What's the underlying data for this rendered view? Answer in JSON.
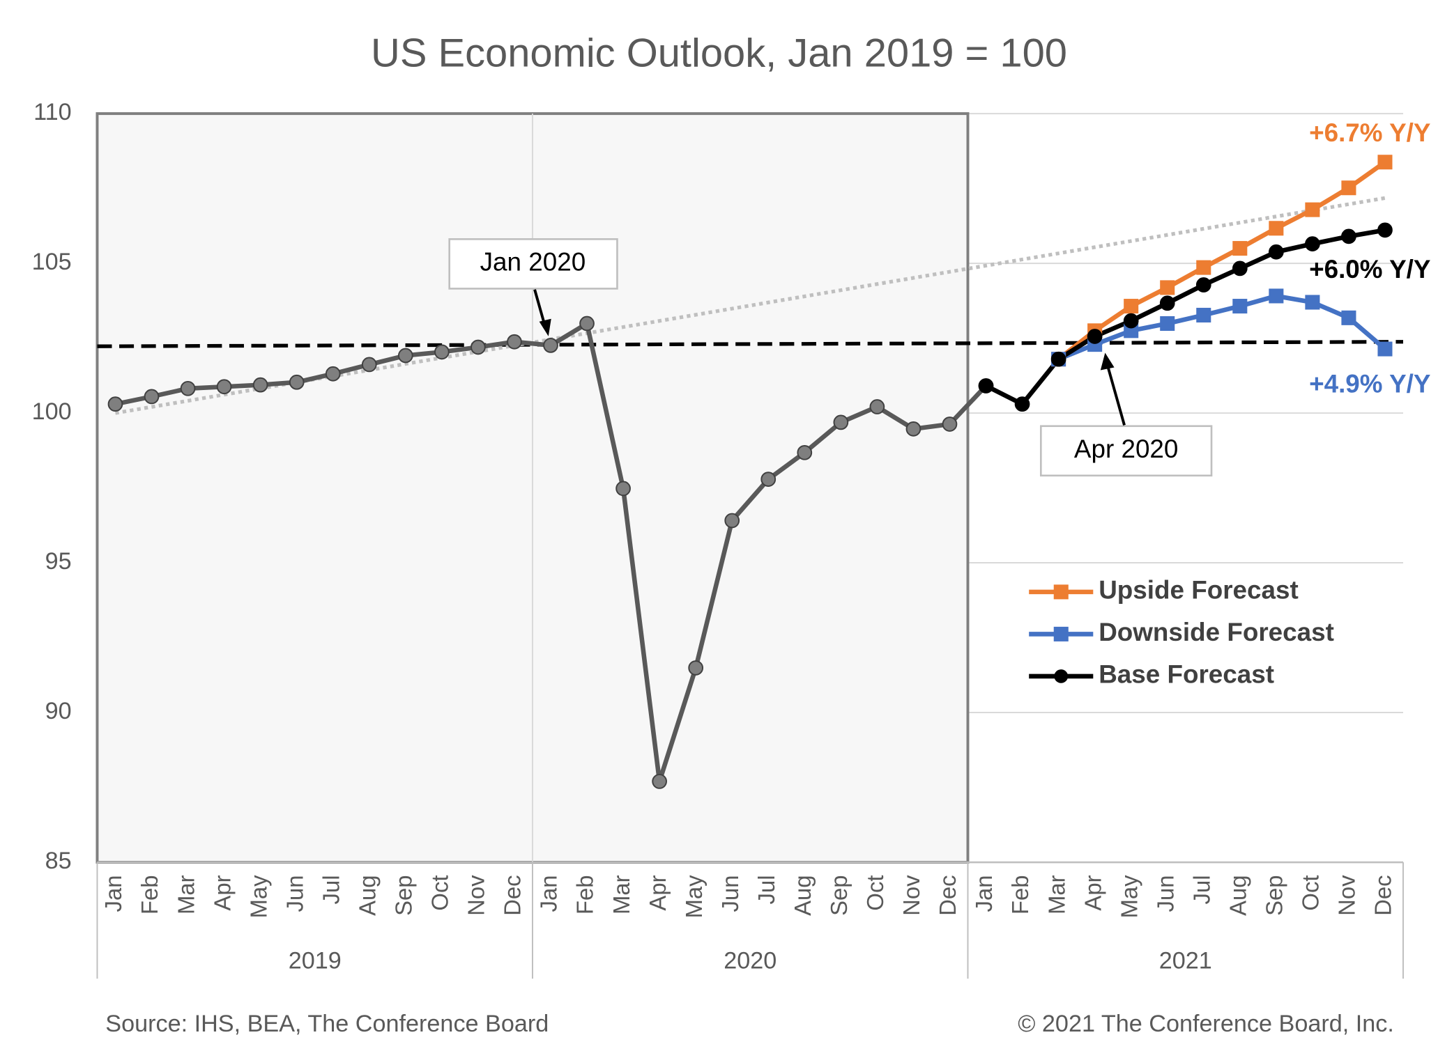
{
  "chart_data": {
    "type": "line",
    "title": "US Economic Outlook, Jan 2019 = 100",
    "categories": [
      "Jan",
      "Feb",
      "Mar",
      "Apr",
      "May",
      "Jun",
      "Jul",
      "Aug",
      "Sep",
      "Oct",
      "Nov",
      "Dec",
      "Jan",
      "Feb",
      "Mar",
      "Apr",
      "May",
      "Jun",
      "Jul",
      "Aug",
      "Sep",
      "Oct",
      "Nov",
      "Dec",
      "Jan",
      "Feb",
      "Mar",
      "Apr",
      "May",
      "Jun",
      "Jul",
      "Aug",
      "Sep",
      "Oct",
      "Nov",
      "Dec"
    ],
    "groups": [
      {
        "name": "2019",
        "count": 12
      },
      {
        "name": "2020",
        "count": 12
      },
      {
        "name": "2021",
        "count": 12
      }
    ],
    "series": [
      {
        "color": "#595959",
        "marker": "circle",
        "values": [
          100.3,
          100.55,
          100.82,
          100.88,
          100.94,
          101.03,
          101.31,
          101.62,
          101.92,
          102.04,
          102.2,
          102.38,
          102.26,
          102.99,
          97.48,
          87.7,
          91.49,
          96.41,
          97.79,
          98.68,
          99.69,
          100.21,
          99.47,
          99.63,
          100.91,
          null,
          null,
          null,
          null,
          null,
          null,
          null,
          null,
          null,
          null,
          null
        ]
      },
      {
        "name": "Upside Forecast",
        "color": "#ed7d31",
        "marker": "square",
        "values": [
          null,
          null,
          null,
          null,
          null,
          null,
          null,
          null,
          null,
          null,
          null,
          null,
          null,
          null,
          null,
          null,
          null,
          null,
          null,
          null,
          null,
          null,
          null,
          null,
          null,
          null,
          101.8,
          102.75,
          103.57,
          104.19,
          104.86,
          105.5,
          106.17,
          106.79,
          107.52,
          108.38
        ]
      },
      {
        "name": "Downside Forecast",
        "color": "#4472c4",
        "marker": "square",
        "values": [
          null,
          null,
          null,
          null,
          null,
          null,
          null,
          null,
          null,
          null,
          null,
          null,
          null,
          null,
          null,
          null,
          null,
          null,
          null,
          null,
          null,
          null,
          null,
          null,
          null,
          null,
          101.8,
          102.29,
          102.75,
          102.99,
          103.27,
          103.57,
          103.91,
          103.7,
          103.18,
          102.14
        ]
      },
      {
        "name": "Base Forecast",
        "color": "#000000",
        "marker": "circle",
        "values": [
          null,
          null,
          null,
          null,
          null,
          null,
          null,
          null,
          null,
          null,
          null,
          null,
          null,
          null,
          null,
          null,
          null,
          null,
          null,
          null,
          null,
          null,
          null,
          null,
          100.91,
          100.3,
          101.8,
          102.56,
          103.08,
          103.67,
          104.28,
          104.83,
          105.38,
          105.65,
          105.9,
          106.11
        ]
      }
    ],
    "reference_lines": [
      {
        "style": "dashed",
        "color": "#000000",
        "values": [
          102.23,
          102.38
        ]
      },
      {
        "style": "dotted",
        "color": "#bfbfbf",
        "values": [
          100,
          107.18
        ]
      }
    ],
    "ylim": [
      85,
      110
    ],
    "yticks": [
      85,
      90,
      95,
      100,
      105,
      110
    ],
    "grid": true,
    "annotations": [
      {
        "text": "Jan 2020"
      },
      {
        "text": "Apr 2020"
      },
      {
        "text": "+6.7% Y/Y",
        "color": "#ed7d31"
      },
      {
        "text": "+6.0% Y/Y",
        "color": "#000000"
      },
      {
        "text": "+4.9% Y/Y",
        "color": "#4472c4"
      }
    ],
    "source": "Source: IHS, BEA, The Conference Board",
    "copyright": "© 2021 The Conference Board, Inc."
  }
}
